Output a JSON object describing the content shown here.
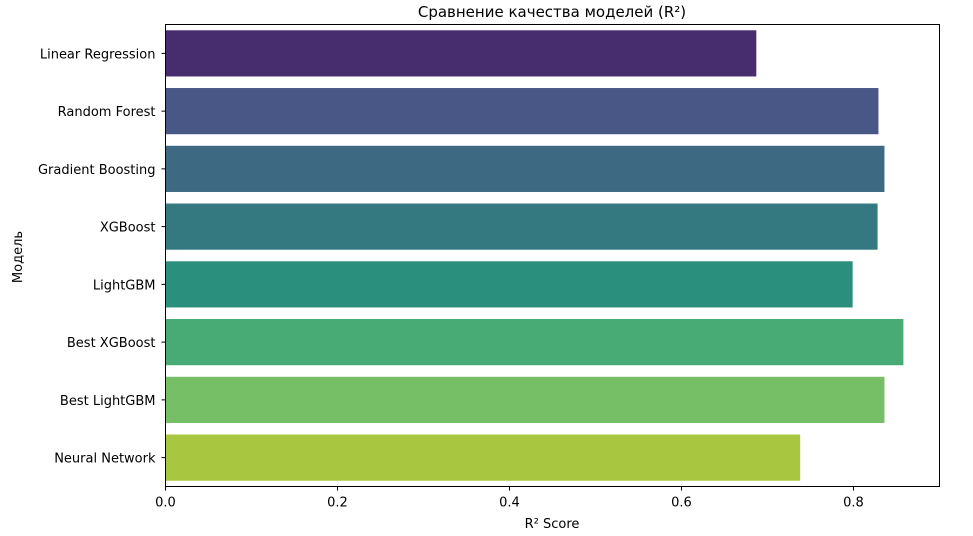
{
  "chart_data": {
    "type": "bar",
    "orientation": "horizontal",
    "title": "Сравнение качества моделей (R²)",
    "xlabel": "R² Score",
    "ylabel": "Модель",
    "categories": [
      "Linear Regression",
      "Random Forest",
      "Gradient Boosting",
      "XGBoost",
      "LightGBM",
      "Best XGBoost",
      "Best LightGBM",
      "Neural Network"
    ],
    "values": [
      0.687,
      0.829,
      0.836,
      0.828,
      0.799,
      0.858,
      0.836,
      0.738
    ],
    "colors": [
      "#472d6e",
      "#485786",
      "#3d6983",
      "#34797f",
      "#2b8f7e",
      "#48aa74",
      "#77bf67",
      "#a9c640"
    ],
    "xlim": [
      0,
      0.9
    ],
    "xticks": [
      0.0,
      0.2,
      0.4,
      0.6,
      0.8
    ],
    "xtick_labels": [
      "0.0",
      "0.2",
      "0.4",
      "0.6",
      "0.8"
    ],
    "grid": false,
    "legend": "none"
  }
}
